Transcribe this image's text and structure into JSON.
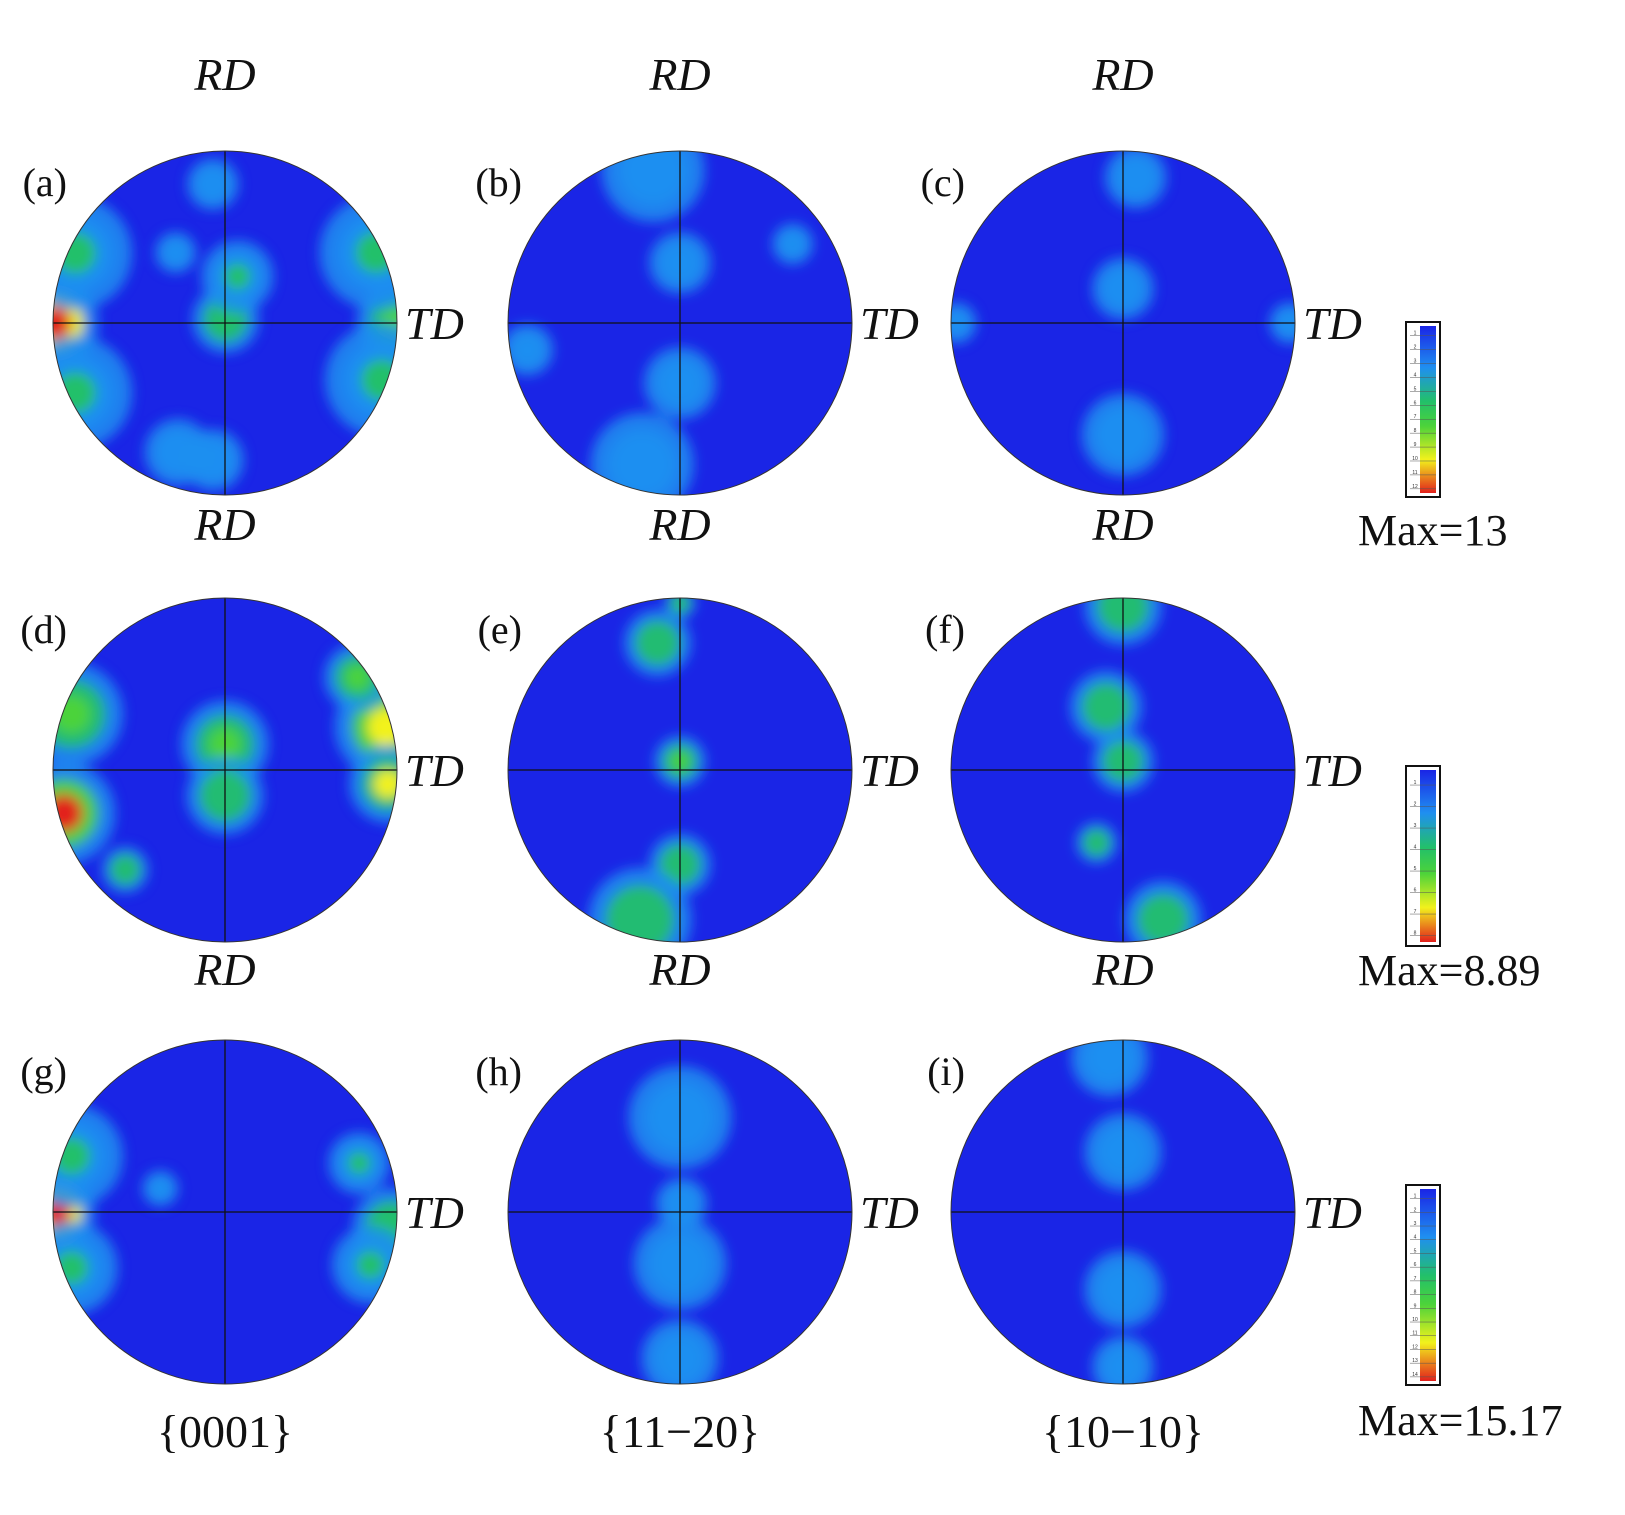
{
  "chart_data": {
    "type": "heatmap",
    "kind": "pole-figure-grid",
    "colors": {
      "low": "#1a25e6",
      "mid1": "#1f8ff0",
      "mid2": "#22c06a",
      "mid3": "#4cd33a",
      "mid4": "#f2f21c",
      "high": "#e2201c",
      "frame": "#111111"
    },
    "axes": {
      "top": "RD",
      "right": "TD"
    },
    "columns": [
      "{0001}",
      "{11−20}",
      "{10−10}"
    ],
    "rows": [
      {
        "max_label": "Max=13",
        "colorbar": {
          "vmin": 1,
          "vmax": 13,
          "ticks": [
            1,
            2,
            3,
            4,
            5,
            6,
            7,
            8,
            9,
            10,
            11,
            12
          ]
        },
        "panels": [
          {
            "label": "(a)",
            "pole": "{0001}",
            "spots": [
              {
                "az": 180,
                "r": 0.99,
                "w": 0.17,
                "i": 12
              },
              {
                "az": 205,
                "r": 0.96,
                "w": 0.22,
                "i": 5
              },
              {
                "az": 155,
                "r": 0.96,
                "w": 0.22,
                "i": 5
              },
              {
                "az": 0,
                "r": 0.99,
                "w": 0.15,
                "i": 7
              },
              {
                "az": 25,
                "r": 0.97,
                "w": 0.22,
                "i": 5
              },
              {
                "az": 340,
                "r": 0.97,
                "w": 0.22,
                "i": 5
              },
              {
                "az": 80,
                "r": 0.02,
                "w": 0.13,
                "i": 6
              },
              {
                "az": 75,
                "r": 0.28,
                "w": 0.14,
                "i": 5
              },
              {
                "az": 95,
                "r": 0.81,
                "w": 0.1,
                "i": 4
              },
              {
                "az": 265,
                "r": 0.8,
                "w": 0.12,
                "i": 4
              },
              {
                "az": 250,
                "r": 0.8,
                "w": 0.13,
                "i": 4
              },
              {
                "az": 125,
                "r": 0.5,
                "w": 0.08,
                "i": 3
              }
            ]
          },
          {
            "label": "(b)",
            "pole": "{11−20}",
            "spots": [
              {
                "az": 90,
                "r": 0.35,
                "w": 0.12,
                "i": 4
              },
              {
                "az": 270,
                "r": 0.35,
                "w": 0.14,
                "i": 4
              },
              {
                "az": 255,
                "r": 0.85,
                "w": 0.2,
                "i": 4
              },
              {
                "az": 100,
                "r": 0.9,
                "w": 0.2,
                "i": 3
              },
              {
                "az": 190,
                "r": 0.9,
                "w": 0.1,
                "i": 3
              },
              {
                "az": 35,
                "r": 0.8,
                "w": 0.08,
                "i": 3
              }
            ]
          },
          {
            "label": "(c)",
            "pole": "{10−10}",
            "spots": [
              {
                "az": 90,
                "r": 0.2,
                "w": 0.12,
                "i": 4
              },
              {
                "az": 270,
                "r": 0.65,
                "w": 0.16,
                "i": 4
              },
              {
                "az": 85,
                "r": 0.85,
                "w": 0.12,
                "i": 3
              },
              {
                "az": 180,
                "r": 0.97,
                "w": 0.08,
                "i": 3
              },
              {
                "az": 0,
                "r": 0.97,
                "w": 0.08,
                "i": 3
              }
            ]
          }
        ]
      },
      {
        "max_label": "Max=8.89",
        "colorbar": {
          "vmin": 1,
          "vmax": 8.89,
          "ticks": [
            1,
            2,
            3,
            4,
            5,
            6,
            7,
            8
          ]
        },
        "panels": [
          {
            "label": "(d)",
            "pole": "{0001}",
            "spots": [
              {
                "az": 195,
                "r": 0.97,
                "w": 0.2,
                "i": 8
              },
              {
                "az": 160,
                "r": 0.95,
                "w": 0.2,
                "i": 5
              },
              {
                "az": 15,
                "r": 0.97,
                "w": 0.2,
                "i": 7
              },
              {
                "az": 355,
                "r": 0.95,
                "w": 0.15,
                "i": 6
              },
              {
                "az": 35,
                "r": 0.94,
                "w": 0.13,
                "i": 5
              },
              {
                "az": 90,
                "r": 0.15,
                "w": 0.17,
                "i": 5
              },
              {
                "az": 270,
                "r": 0.15,
                "w": 0.15,
                "i": 4
              },
              {
                "az": 225,
                "r": 0.82,
                "w": 0.09,
                "i": 3
              }
            ]
          },
          {
            "label": "(e)",
            "pole": "{11−20}",
            "spots": [
              {
                "az": 100,
                "r": 0.75,
                "w": 0.13,
                "i": 4
              },
              {
                "az": 90,
                "r": 0.05,
                "w": 0.1,
                "i": 5
              },
              {
                "az": 270,
                "r": 0.55,
                "w": 0.12,
                "i": 4
              },
              {
                "az": 255,
                "r": 0.9,
                "w": 0.2,
                "i": 4
              },
              {
                "az": 90,
                "r": 0.97,
                "w": 0.06,
                "i": 4
              }
            ]
          },
          {
            "label": "(f)",
            "pole": "{10−10}",
            "spots": [
              {
                "az": 105,
                "r": 0.38,
                "w": 0.14,
                "i": 4
              },
              {
                "az": 90,
                "r": 0.05,
                "w": 0.12,
                "i": 4
              },
              {
                "az": 250,
                "r": 0.45,
                "w": 0.08,
                "i": 4
              },
              {
                "az": 285,
                "r": 0.9,
                "w": 0.15,
                "i": 4
              },
              {
                "az": 90,
                "r": 0.95,
                "w": 0.15,
                "i": 3
              }
            ]
          }
        ]
      },
      {
        "max_label": "Max=15.17",
        "colorbar": {
          "vmin": 1,
          "vmax": 15.17,
          "ticks": [
            1,
            2,
            3,
            4,
            5,
            6,
            7,
            8,
            9,
            10,
            11,
            12,
            13,
            14
          ]
        },
        "panels": [
          {
            "label": "(g)",
            "pole": "{0001}",
            "spots": [
              {
                "az": 180,
                "r": 0.98,
                "w": 0.15,
                "i": 14
              },
              {
                "az": 160,
                "r": 0.95,
                "w": 0.2,
                "i": 6
              },
              {
                "az": 200,
                "r": 0.95,
                "w": 0.18,
                "i": 5
              },
              {
                "az": 355,
                "r": 0.97,
                "w": 0.15,
                "i": 7
              },
              {
                "az": 20,
                "r": 0.83,
                "w": 0.12,
                "i": 5
              },
              {
                "az": 340,
                "r": 0.9,
                "w": 0.15,
                "i": 6
              },
              {
                "az": 160,
                "r": 0.4,
                "w": 0.07,
                "i": 4
              }
            ]
          },
          {
            "label": "(h)",
            "pole": "{11−20}",
            "spots": [
              {
                "az": 90,
                "r": 0.55,
                "w": 0.2,
                "i": 3
              },
              {
                "az": 270,
                "r": 0.3,
                "w": 0.18,
                "i": 3
              },
              {
                "az": 270,
                "r": 0.85,
                "w": 0.15,
                "i": 4
              },
              {
                "az": 80,
                "r": 0.05,
                "w": 0.1,
                "i": 3
              }
            ]
          },
          {
            "label": "(i)",
            "pole": "{10−10}",
            "spots": [
              {
                "az": 90,
                "r": 0.35,
                "w": 0.15,
                "i": 4
              },
              {
                "az": 270,
                "r": 0.45,
                "w": 0.15,
                "i": 4
              },
              {
                "az": 95,
                "r": 0.9,
                "w": 0.15,
                "i": 3
              },
              {
                "az": 270,
                "r": 0.9,
                "w": 0.12,
                "i": 3
              }
            ]
          }
        ]
      }
    ]
  }
}
